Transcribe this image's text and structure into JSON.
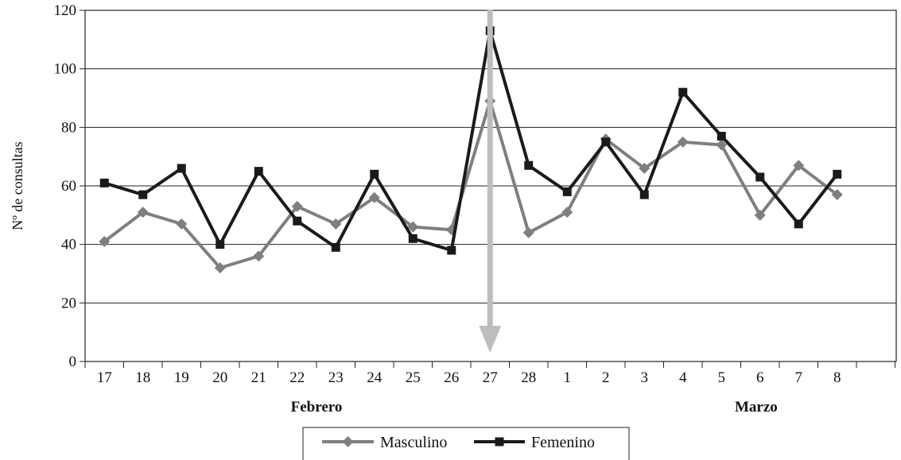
{
  "chart_data": {
    "type": "line",
    "title": "",
    "ylabel": "Nº de consultas",
    "xlabel": "",
    "ylim": [
      0,
      120
    ],
    "yticks": [
      0,
      20,
      40,
      60,
      80,
      100,
      120
    ],
    "grid": true,
    "legend_position": "bottom",
    "categories": [
      "17",
      "18",
      "19",
      "20",
      "21",
      "22",
      "23",
      "24",
      "25",
      "26",
      "27",
      "28",
      "1",
      "2",
      "3",
      "4",
      "5",
      "6",
      "7",
      "8"
    ],
    "month_labels": [
      {
        "label": "Febrero",
        "from": "17",
        "to": "28"
      },
      {
        "label": "Marzo",
        "from": "1",
        "to": "8"
      }
    ],
    "series": [
      {
        "name": "Masculino",
        "marker": "diamond",
        "color": "#7f7f7f",
        "values": [
          41,
          51,
          47,
          32,
          36,
          53,
          47,
          56,
          46,
          45,
          89,
          44,
          51,
          76,
          66,
          75,
          74,
          50,
          67,
          57
        ]
      },
      {
        "name": "Femenino",
        "marker": "square",
        "color": "#1a1a1a",
        "values": [
          61,
          57,
          66,
          40,
          65,
          48,
          39,
          64,
          42,
          38,
          113,
          67,
          58,
          75,
          57,
          92,
          77,
          63,
          47,
          64
        ]
      }
    ],
    "annotation": {
      "type": "arrow",
      "at": "27",
      "direction": "down",
      "color": "#bdbdbd"
    }
  }
}
